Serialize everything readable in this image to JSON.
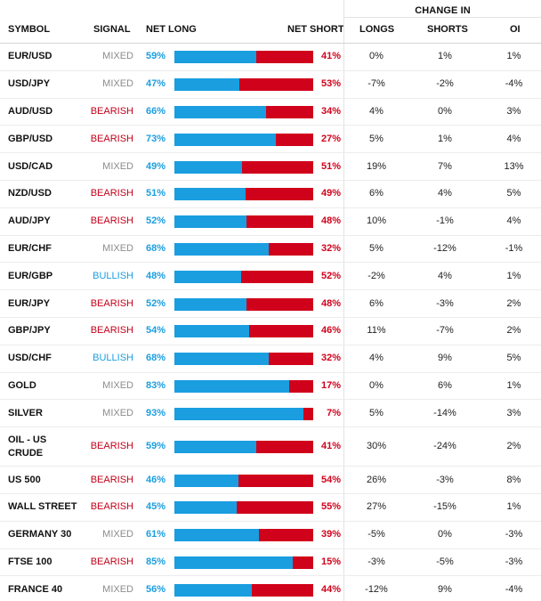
{
  "header": {
    "change_in": "CHANGE IN",
    "symbol": "SYMBOL",
    "signal": "SIGNAL",
    "net_long": "NET LONG",
    "net_short": "NET SHORT",
    "longs": "LONGS",
    "shorts": "SHORTS",
    "oi": "OI"
  },
  "colors": {
    "net_long": "#1a9ee0",
    "net_short": "#d0021b",
    "mixed": "#8c8c8c",
    "bearish": "#c4001a",
    "bullish": "#1a9ee0"
  },
  "rows": [
    {
      "symbol": "EUR/USD",
      "signal": "MIXED",
      "net_long": "59%",
      "long_fraction": 0.59,
      "net_short": "41%",
      "longs": "0%",
      "shorts": "1%",
      "oi": "1%"
    },
    {
      "symbol": "USD/JPY",
      "signal": "MIXED",
      "net_long": "47%",
      "long_fraction": 0.47,
      "net_short": "53%",
      "longs": "-7%",
      "shorts": "-2%",
      "oi": "-4%"
    },
    {
      "symbol": "AUD/USD",
      "signal": "BEARISH",
      "net_long": "66%",
      "long_fraction": 0.66,
      "net_short": "34%",
      "longs": "4%",
      "shorts": "0%",
      "oi": "3%"
    },
    {
      "symbol": "GBP/USD",
      "signal": "BEARISH",
      "net_long": "73%",
      "long_fraction": 0.73,
      "net_short": "27%",
      "longs": "5%",
      "shorts": "1%",
      "oi": "4%"
    },
    {
      "symbol": "USD/CAD",
      "signal": "MIXED",
      "net_long": "49%",
      "long_fraction": 0.49,
      "net_short": "51%",
      "longs": "19%",
      "shorts": "7%",
      "oi": "13%"
    },
    {
      "symbol": "NZD/USD",
      "signal": "BEARISH",
      "net_long": "51%",
      "long_fraction": 0.51,
      "net_short": "49%",
      "longs": "6%",
      "shorts": "4%",
      "oi": "5%"
    },
    {
      "symbol": "AUD/JPY",
      "signal": "BEARISH",
      "net_long": "52%",
      "long_fraction": 0.52,
      "net_short": "48%",
      "longs": "10%",
      "shorts": "-1%",
      "oi": "4%"
    },
    {
      "symbol": "EUR/CHF",
      "signal": "MIXED",
      "net_long": "68%",
      "long_fraction": 0.68,
      "net_short": "32%",
      "longs": "5%",
      "shorts": "-12%",
      "oi": "-1%"
    },
    {
      "symbol": "EUR/GBP",
      "signal": "BULLISH",
      "net_long": "48%",
      "long_fraction": 0.48,
      "net_short": "52%",
      "longs": "-2%",
      "shorts": "4%",
      "oi": "1%"
    },
    {
      "symbol": "EUR/JPY",
      "signal": "BEARISH",
      "net_long": "52%",
      "long_fraction": 0.52,
      "net_short": "48%",
      "longs": "6%",
      "shorts": "-3%",
      "oi": "2%"
    },
    {
      "symbol": "GBP/JPY",
      "signal": "BEARISH",
      "net_long": "54%",
      "long_fraction": 0.54,
      "net_short": "46%",
      "longs": "11%",
      "shorts": "-7%",
      "oi": "2%"
    },
    {
      "symbol": "USD/CHF",
      "signal": "BULLISH",
      "net_long": "68%",
      "long_fraction": 0.68,
      "net_short": "32%",
      "longs": "4%",
      "shorts": "9%",
      "oi": "5%"
    },
    {
      "symbol": "GOLD",
      "signal": "MIXED",
      "net_long": "83%",
      "long_fraction": 0.83,
      "net_short": "17%",
      "longs": "0%",
      "shorts": "6%",
      "oi": "1%"
    },
    {
      "symbol": "SILVER",
      "signal": "MIXED",
      "net_long": "93%",
      "long_fraction": 0.93,
      "net_short": "7%",
      "longs": "5%",
      "shorts": "-14%",
      "oi": "3%"
    },
    {
      "symbol": "OIL - US CRUDE",
      "signal": "BEARISH",
      "net_long": "59%",
      "long_fraction": 0.59,
      "net_short": "41%",
      "longs": "30%",
      "shorts": "-24%",
      "oi": "2%"
    },
    {
      "symbol": "US 500",
      "signal": "BEARISH",
      "net_long": "46%",
      "long_fraction": 0.46,
      "net_short": "54%",
      "longs": "26%",
      "shorts": "-3%",
      "oi": "8%"
    },
    {
      "symbol": "WALL STREET",
      "signal": "BEARISH",
      "net_long": "45%",
      "long_fraction": 0.45,
      "net_short": "55%",
      "longs": "27%",
      "shorts": "-15%",
      "oi": "1%"
    },
    {
      "symbol": "GERMANY 30",
      "signal": "MIXED",
      "net_long": "61%",
      "long_fraction": 0.61,
      "net_short": "39%",
      "longs": "-5%",
      "shorts": "0%",
      "oi": "-3%"
    },
    {
      "symbol": "FTSE 100",
      "signal": "BEARISH",
      "net_long": "85%",
      "long_fraction": 0.85,
      "net_short": "15%",
      "longs": "-3%",
      "shorts": "-5%",
      "oi": "-3%"
    },
    {
      "symbol": "FRANCE 40",
      "signal": "MIXED",
      "net_long": "56%",
      "long_fraction": 0.56,
      "net_short": "44%",
      "longs": "-12%",
      "shorts": "9%",
      "oi": "-4%"
    }
  ]
}
